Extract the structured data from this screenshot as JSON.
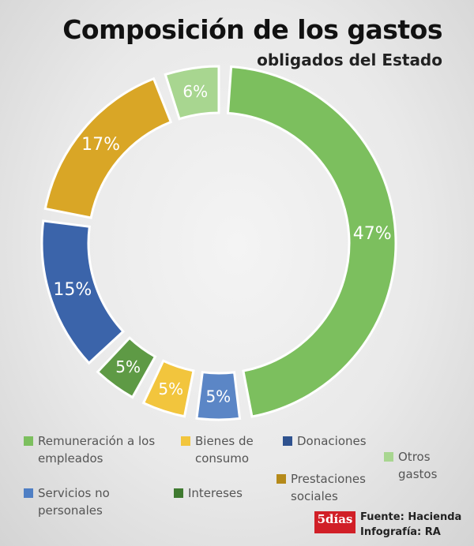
{
  "chart_data": {
    "type": "pie",
    "variant": "donut",
    "title": "Composición de los gastos",
    "subtitle": "obligados del Estado",
    "slices": [
      {
        "name": "Remuneración a los empleados",
        "value": 47,
        "label": "47%",
        "color": "#7cbf5e"
      },
      {
        "name": "Donaciones",
        "value": 5,
        "label": "5%",
        "color": "#5b86c6"
      },
      {
        "name": "Bienes de consumo",
        "value": 5,
        "label": "5%",
        "color": "#f2c53d"
      },
      {
        "name": "Intereses",
        "value": 5,
        "label": "5%",
        "color": "#5e9a45"
      },
      {
        "name": "Servicios no personales",
        "value": 15,
        "label": "15%",
        "color": "#3b64aa"
      },
      {
        "name": "Prestaciones sociales",
        "value": 17,
        "label": "17%",
        "color": "#d9a626"
      },
      {
        "name": "Otros gastos",
        "value": 6,
        "label": "6%",
        "color": "#a8d690"
      }
    ]
  },
  "legend": [
    {
      "label": "Remuneración a los\nempleados",
      "color": "#7cbf5e"
    },
    {
      "label": "Bienes de\nconsumo",
      "color": "#f2c53d"
    },
    {
      "label": "Donaciones",
      "color": "#2f528f"
    },
    {
      "label": "Otros\ngastos",
      "color": "#a8d690"
    },
    {
      "label": "Servicios no\npersonales",
      "color": "#4f7fc4"
    },
    {
      "label": "Intereses",
      "color": "#3f7a30"
    },
    {
      "label": "Prestaciones\nsociales",
      "color": "#b58a1a"
    }
  ],
  "footer": {
    "logo": "5días",
    "source": "Fuente: Hacienda",
    "credit": "Infografía: RA"
  }
}
